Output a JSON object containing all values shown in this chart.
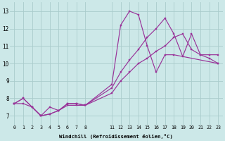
{
  "xlabel": "Windchill (Refroidissement éolien,°C)",
  "bg_color": "#cce8e8",
  "grid_color": "#aacccc",
  "line_color": "#993399",
  "xlim": [
    -0.5,
    23.5
  ],
  "ylim": [
    6.5,
    13.5
  ],
  "xticks": [
    0,
    1,
    2,
    3,
    4,
    5,
    6,
    7,
    8,
    11,
    12,
    13,
    14,
    15,
    16,
    17,
    18,
    19,
    20,
    21,
    22,
    23
  ],
  "yticks": [
    7,
    8,
    9,
    10,
    11,
    12,
    13
  ],
  "line1_x": [
    0,
    1,
    2,
    3,
    4,
    5,
    6,
    7,
    8,
    11,
    12,
    13,
    14,
    15,
    16,
    17,
    18,
    23
  ],
  "line1_y": [
    7.7,
    8.0,
    7.5,
    7.0,
    7.1,
    7.3,
    7.7,
    7.7,
    7.6,
    8.8,
    12.2,
    13.0,
    12.8,
    11.0,
    9.5,
    10.5,
    10.5,
    10.0
  ],
  "line2_x": [
    0,
    1,
    2,
    3,
    4,
    5,
    6,
    7,
    8,
    11,
    12,
    13,
    14,
    15,
    16,
    17,
    18,
    19,
    20,
    21,
    22,
    23
  ],
  "line2_y": [
    7.7,
    8.0,
    7.5,
    7.0,
    7.5,
    7.3,
    7.7,
    7.7,
    7.6,
    8.6,
    9.5,
    10.2,
    10.8,
    11.5,
    12.0,
    12.6,
    11.7,
    10.4,
    11.7,
    10.5,
    10.5,
    10.5
  ],
  "line3_x": [
    0,
    1,
    2,
    3,
    4,
    5,
    6,
    7,
    8,
    11,
    12,
    13,
    14,
    15,
    16,
    17,
    18,
    19,
    20,
    21,
    22,
    23
  ],
  "line3_y": [
    7.7,
    7.7,
    7.5,
    7.0,
    7.1,
    7.3,
    7.6,
    7.6,
    7.6,
    8.3,
    9.0,
    9.5,
    10.0,
    10.3,
    10.7,
    11.0,
    11.5,
    11.7,
    10.8,
    10.5,
    10.3,
    10.0
  ]
}
